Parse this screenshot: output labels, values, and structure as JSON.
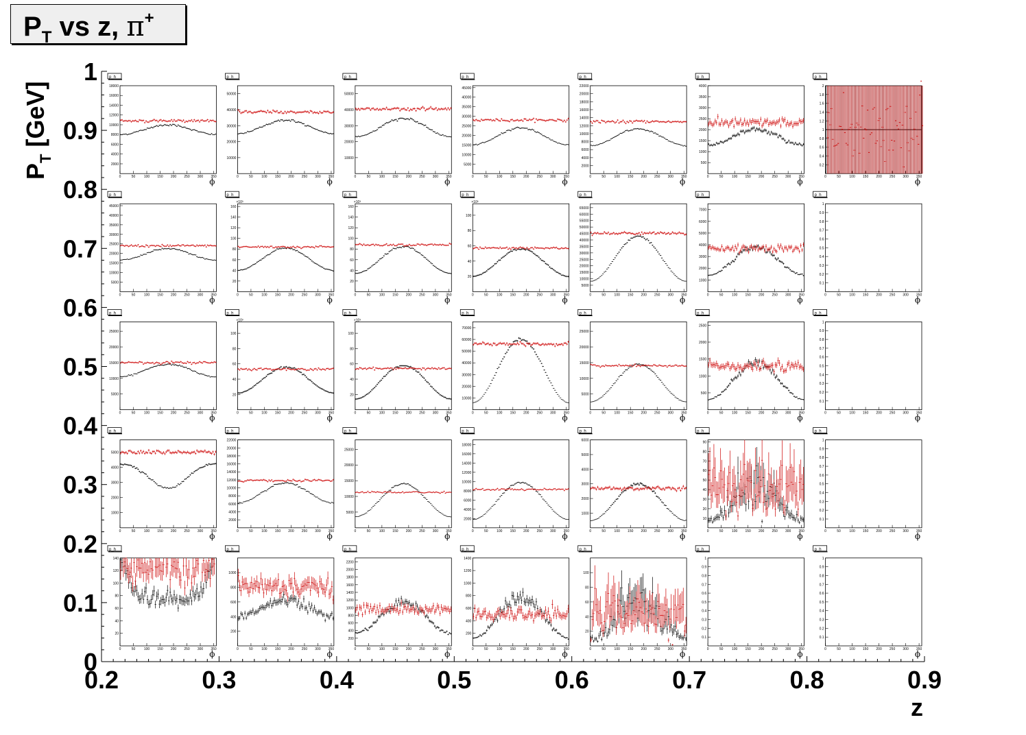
{
  "title": {
    "main": "P",
    "main_sub": "T",
    "mid": " vs z, ",
    "symbol": "π",
    "symbol_sup": "+"
  },
  "chart_data": {
    "type": "scatter",
    "description_layout": "grid of histograms: columns = z bins, rows = P_T bins",
    "xlabel": "z",
    "ylabel_main": "P",
    "ylabel_sub": "T",
    "ylabel_rest": " [GeV]",
    "x_ticks": [
      "0.2",
      "0.3",
      "0.4",
      "0.5",
      "0.6",
      "0.7",
      "0.8",
      "0.9"
    ],
    "y_ticks": [
      "0",
      "0.1",
      "0.2",
      "0.3",
      "0.4",
      "0.5",
      "0.6",
      "0.7",
      "0.8",
      "0.9",
      "1"
    ],
    "xlim": [
      0.2,
      0.9
    ],
    "ylim": [
      0,
      1
    ],
    "subplot": {
      "label": "p_h",
      "xaxis_title": "ϕ",
      "x_ticks": [
        "0",
        "50",
        "100",
        "150",
        "200",
        "250",
        "300",
        "350"
      ],
      "xlim": [
        0,
        360
      ],
      "series_colors": {
        "raw": "#000000",
        "corrected": "#cc0000"
      }
    },
    "cells": [
      [
        {
          "ymax": 18000,
          "ticks": [
            2000,
            4000,
            6000,
            8000,
            10000,
            12000,
            14000,
            16000,
            18000
          ],
          "exp": "",
          "kind": "cos",
          "black": [
            8000,
            10000
          ],
          "red": 10800,
          "noise": 0.01
        },
        {
          "ymax": 55000,
          "ticks": [
            10000,
            20000,
            30000,
            40000,
            50000
          ],
          "exp": "",
          "kind": "cos",
          "black": [
            25000,
            33500
          ],
          "red": 38500,
          "noise": 0.01
        },
        {
          "ymax": 55000,
          "ticks": [
            10000,
            20000,
            30000,
            40000,
            50000
          ],
          "exp": "",
          "kind": "cos",
          "black": [
            23000,
            34500
          ],
          "red": 40500,
          "noise": 0.01
        },
        {
          "ymax": 46000,
          "ticks": [
            5000,
            10000,
            15000,
            20000,
            25000,
            30000,
            35000,
            40000,
            45000
          ],
          "exp": "",
          "kind": "cos",
          "black": [
            15000,
            24000
          ],
          "red": 28000,
          "noise": 0.01
        },
        {
          "ymax": 22000,
          "ticks": [
            2000,
            4000,
            6000,
            8000,
            10000,
            12000,
            14000,
            16000,
            18000,
            20000,
            22000
          ],
          "exp": "",
          "kind": "cos",
          "black": [
            7000,
            11200
          ],
          "red": 13000,
          "noise": 0.01
        },
        {
          "ymax": 4000,
          "ticks": [
            500,
            1000,
            1500,
            2000,
            2500,
            3000,
            3500,
            4000
          ],
          "exp": "",
          "kind": "cos",
          "black": [
            1300,
            2000
          ],
          "red": 2300,
          "noise": 0.03
        },
        {
          "ymax": 2,
          "ticks": [
            0.2,
            0.4,
            0.6,
            0.8,
            1,
            1.2,
            1.4,
            1.6,
            1.8,
            2
          ],
          "exp": "",
          "kind": "noise",
          "black": [
            1,
            1
          ],
          "red": 1,
          "noise": 0
        }
      ],
      [
        {
          "ymax": 46000,
          "ticks": [
            5000,
            10000,
            15000,
            20000,
            25000,
            30000,
            35000,
            40000,
            45000
          ],
          "exp": "",
          "kind": "cos",
          "black": [
            16500,
            22500
          ],
          "red": 24000,
          "noise": 0.01
        },
        {
          "ymax": 165,
          "ticks": [
            20,
            40,
            60,
            80,
            100,
            120,
            140,
            160
          ],
          "exp": "10³",
          "kind": "cos",
          "black": [
            40,
            82
          ],
          "red": 84,
          "noise": 0.01
        },
        {
          "ymax": 165,
          "ticks": [
            20,
            40,
            60,
            80,
            100,
            120,
            140,
            160
          ],
          "exp": "10³",
          "kind": "cos",
          "black": [
            34,
            85
          ],
          "red": 88,
          "noise": 0.01
        },
        {
          "ymax": 115,
          "ticks": [
            20,
            40,
            60,
            80,
            100
          ],
          "exp": "10³",
          "kind": "cos",
          "black": [
            20,
            56
          ],
          "red": 57,
          "noise": 0.01
        },
        {
          "ymax": 68000,
          "ticks": [
            5000,
            10000,
            15000,
            20000,
            25000,
            30000,
            35000,
            40000,
            45000,
            50000,
            55000,
            60000,
            65000
          ],
          "exp": "",
          "kind": "cos",
          "black": [
            8000,
            43000
          ],
          "red": 45000,
          "noise": 0.01
        },
        {
          "ymax": 7500,
          "ticks": [
            1000,
            2000,
            3000,
            4000,
            5000,
            6000,
            7000
          ],
          "exp": "",
          "kind": "cos",
          "black": [
            1400,
            3800
          ],
          "red": 3700,
          "noise": 0.03
        },
        {
          "ymax": 1,
          "ticks": [
            0.1,
            0.2,
            0.3,
            0.4,
            0.5,
            0.6,
            0.7,
            0.8,
            0.9,
            1
          ],
          "exp": "",
          "kind": "empty",
          "black": [
            0,
            0
          ],
          "red": 0,
          "noise": 0
        }
      ],
      [
        {
          "ymax": 28000,
          "ticks": [
            5000,
            10000,
            15000,
            20000,
            25000
          ],
          "exp": "",
          "kind": "cos",
          "black": [
            10500,
            14500
          ],
          "red": 15000,
          "noise": 0.01
        },
        {
          "ymax": 115,
          "ticks": [
            20,
            40,
            60,
            80,
            100
          ],
          "exp": "10³",
          "kind": "cos",
          "black": [
            22,
            56
          ],
          "red": 53,
          "noise": 0.01
        },
        {
          "ymax": 115,
          "ticks": [
            20,
            40,
            60,
            80,
            100
          ],
          "exp": "10³",
          "kind": "cos",
          "black": [
            14,
            58
          ],
          "red": 54,
          "noise": 0.01
        },
        {
          "ymax": 75000,
          "ticks": [
            10000,
            20000,
            30000,
            40000,
            50000,
            60000,
            70000
          ],
          "exp": "",
          "kind": "cos",
          "black": [
            6000,
            60000
          ],
          "red": 56000,
          "noise": 0.01
        },
        {
          "ymax": 28000,
          "ticks": [
            5000,
            10000,
            15000,
            20000,
            25000
          ],
          "exp": "",
          "kind": "cos",
          "black": [
            2500,
            14500
          ],
          "red": 14000,
          "noise": 0.01
        },
        {
          "ymax": 2600,
          "ticks": [
            500,
            1000,
            1500,
            2000,
            2500
          ],
          "exp": "",
          "kind": "cos",
          "black": [
            300,
            1380
          ],
          "red": 1280,
          "noise": 0.04
        },
        {
          "ymax": 1,
          "ticks": [
            0.1,
            0.2,
            0.3,
            0.4,
            0.5,
            0.6,
            0.7,
            0.8,
            0.9,
            1
          ],
          "exp": "",
          "kind": "empty",
          "black": [
            0,
            0
          ],
          "red": 0,
          "noise": 0
        }
      ],
      [
        {
          "ymax": 5800,
          "ticks": [
            1000,
            2000,
            3000,
            4000,
            5000
          ],
          "exp": "",
          "kind": "cos",
          "black": [
            2600,
            4400
          ],
          "red": 5000,
          "noise": 0.01,
          "edge": true
        },
        {
          "ymax": 22000,
          "ticks": [
            2000,
            4000,
            6000,
            8000,
            10000,
            12000,
            14000,
            16000,
            18000,
            20000,
            22000
          ],
          "exp": "",
          "kind": "cos",
          "black": [
            6200,
            11200
          ],
          "red": 11800,
          "noise": 0.01
        },
        {
          "ymax": 28000,
          "ticks": [
            5000,
            10000,
            15000,
            20000,
            25000
          ],
          "exp": "",
          "kind": "cos",
          "black": [
            3500,
            14000
          ],
          "red": 11300,
          "noise": 0.01
        },
        {
          "ymax": 19000,
          "ticks": [
            2000,
            4000,
            6000,
            8000,
            10000,
            12000,
            14000,
            16000,
            18000
          ],
          "exp": "",
          "kind": "cos",
          "black": [
            1800,
            9800
          ],
          "red": 8300,
          "noise": 0.01
        },
        {
          "ymax": 6000,
          "ticks": [
            1000,
            2000,
            3000,
            4000,
            5000,
            6000
          ],
          "exp": "",
          "kind": "cos",
          "black": [
            500,
            3000
          ],
          "red": 2700,
          "noise": 0.02
        },
        {
          "ymax": 92,
          "ticks": [
            10,
            20,
            30,
            40,
            50,
            60,
            70,
            80,
            90
          ],
          "exp": "",
          "kind": "noisy",
          "black": [
            8,
            45
          ],
          "red": 42,
          "noise": 0.25
        },
        {
          "ymax": 1,
          "ticks": [
            0.1,
            0.2,
            0.3,
            0.4,
            0.5,
            0.6,
            0.7,
            0.8,
            0.9,
            1
          ],
          "exp": "",
          "kind": "empty",
          "black": [
            0,
            0
          ],
          "red": 0,
          "noise": 0
        }
      ],
      [
        {
          "ymax": 140,
          "ticks": [
            20,
            40,
            60,
            80,
            100,
            120,
            140
          ],
          "exp": "",
          "kind": "edge",
          "black": [
            65,
            160
          ],
          "red": 128,
          "noise": 0.08
        },
        {
          "ymax": 1200,
          "ticks": [
            200,
            400,
            600,
            800,
            1000
          ],
          "exp": "",
          "kind": "cos",
          "black": [
            400,
            620
          ],
          "red": 820,
          "noise": 0.06
        },
        {
          "ymax": 2300,
          "ticks": [
            200,
            400,
            600,
            800,
            1000,
            1200,
            1400,
            1600,
            1800,
            2000,
            2200
          ],
          "exp": "",
          "kind": "cos",
          "black": [
            330,
            1150
          ],
          "red": 950,
          "noise": 0.05
        },
        {
          "ymax": 1400,
          "ticks": [
            200,
            400,
            600,
            800,
            1000,
            1200,
            1400
          ],
          "exp": "",
          "kind": "cos",
          "black": [
            120,
            760
          ],
          "red": 500,
          "noise": 0.07
        },
        {
          "ymax": 120,
          "ticks": [
            20,
            40,
            60,
            80,
            100
          ],
          "exp": "",
          "kind": "noisy",
          "black": [
            10,
            60
          ],
          "red": 45,
          "noise": 0.25
        },
        {
          "ymax": 1,
          "ticks": [
            0.1,
            0.2,
            0.3,
            0.4,
            0.5,
            0.6,
            0.7,
            0.8,
            0.9,
            1
          ],
          "exp": "",
          "kind": "empty",
          "black": [
            0,
            0
          ],
          "red": 0,
          "noise": 0
        },
        {
          "ymax": 1,
          "ticks": [
            0.1,
            0.2,
            0.3,
            0.4,
            0.5,
            0.6,
            0.7,
            0.8,
            0.9,
            1
          ],
          "exp": "",
          "kind": "empty",
          "black": [
            0,
            0
          ],
          "red": 0,
          "noise": 0
        }
      ]
    ]
  }
}
